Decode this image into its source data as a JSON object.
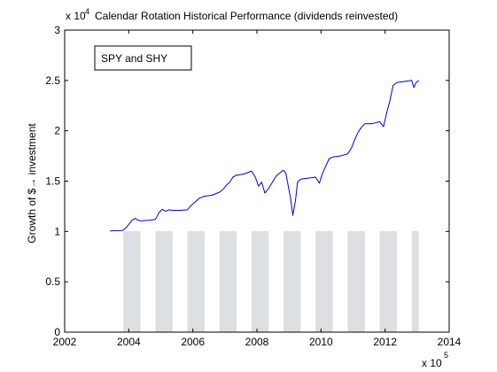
{
  "chart_data": {
    "type": "line",
    "title": "Calendar Rotation Historical Performance (dividends reinvested)",
    "xlabel": "",
    "ylabel": "Growth of $→ investment",
    "xlim": [
      2002,
      2014
    ],
    "ylim": [
      0,
      30000
    ],
    "xticks": [
      2002,
      2004,
      2006,
      2008,
      2010,
      2012,
      2014
    ],
    "yticks": [
      0,
      5000,
      10000,
      15000,
      20000,
      25000,
      30000
    ],
    "yticklabels": [
      "0",
      "0.5",
      "1",
      "1.5",
      "2",
      "2.5",
      "3"
    ],
    "xticklabels": [
      "2002",
      "2004",
      "2006",
      "2008",
      "2010",
      "2012",
      "2014"
    ],
    "y_exponent": {
      "base": "x 10",
      "power": "4"
    },
    "x_exponent": {
      "base": "x 10",
      "power": "5"
    },
    "legend": {
      "text": "SPY and SHY",
      "placement": "top-left"
    },
    "shaded_periods": [
      {
        "start": 2003.83,
        "end": 2004.37
      },
      {
        "start": 2004.83,
        "end": 2005.37
      },
      {
        "start": 2005.83,
        "end": 2006.37
      },
      {
        "start": 2006.83,
        "end": 2007.37
      },
      {
        "start": 2007.83,
        "end": 2008.37
      },
      {
        "start": 2008.83,
        "end": 2009.37
      },
      {
        "start": 2009.83,
        "end": 2010.37
      },
      {
        "start": 2010.83,
        "end": 2011.37
      },
      {
        "start": 2011.83,
        "end": 2012.37
      },
      {
        "start": 2012.83,
        "end": 2013.05
      }
    ],
    "series": [
      {
        "name": "SPY and SHY",
        "color": "#0000cc",
        "x": [
          2003.42,
          2003.6,
          2003.8,
          2003.9,
          2004.0,
          2004.1,
          2004.2,
          2004.3,
          2004.4,
          2004.6,
          2004.83,
          2004.95,
          2005.05,
          2005.15,
          2005.25,
          2005.37,
          2005.6,
          2005.83,
          2005.95,
          2006.1,
          2006.2,
          2006.37,
          2006.6,
          2006.83,
          2006.95,
          2007.05,
          2007.15,
          2007.25,
          2007.37,
          2007.6,
          2007.83,
          2007.95,
          2008.05,
          2008.15,
          2008.25,
          2008.37,
          2008.6,
          2008.83,
          2008.9,
          2008.98,
          2009.05,
          2009.12,
          2009.2,
          2009.27,
          2009.37,
          2009.6,
          2009.83,
          2009.95,
          2010.05,
          2010.15,
          2010.25,
          2010.37,
          2010.6,
          2010.83,
          2010.95,
          2011.05,
          2011.15,
          2011.25,
          2011.37,
          2011.6,
          2011.83,
          2011.95,
          2012.05,
          2012.15,
          2012.25,
          2012.37,
          2012.6,
          2012.83,
          2012.9,
          2012.97,
          2013.05
        ],
        "y": [
          10050,
          10080,
          10100,
          10300,
          10700,
          11100,
          11300,
          11100,
          11050,
          11100,
          11200,
          11900,
          12200,
          12000,
          12150,
          12100,
          12100,
          12150,
          12600,
          13000,
          13300,
          13500,
          13600,
          13900,
          14200,
          14600,
          14900,
          15400,
          15600,
          15700,
          16000,
          15400,
          14500,
          14900,
          13800,
          14300,
          15500,
          16100,
          15800,
          14500,
          13300,
          11600,
          13000,
          14900,
          15200,
          15300,
          15400,
          14800,
          15800,
          16500,
          17200,
          17400,
          17500,
          17700,
          18300,
          19100,
          19800,
          20300,
          20700,
          20700,
          20900,
          20400,
          21800,
          23000,
          24500,
          24800,
          24900,
          25000,
          24300,
          24800,
          25000
        ]
      }
    ]
  }
}
